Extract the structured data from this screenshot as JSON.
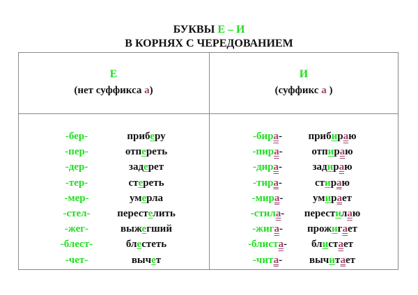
{
  "title": {
    "line1_prefix": "БУКВЫ ",
    "line1_letters": "Е – И",
    "line2": "В КОРНЯХ С ЧЕРЕДОВАНИЕМ"
  },
  "colors": {
    "green": "#22dd22",
    "purple": "#a0446e"
  },
  "columns": [
    {
      "letter": "Е",
      "note_open": "(нет суффикса ",
      "note_suffix": "а",
      "note_close": ")"
    },
    {
      "letter": "И",
      "note_open": "(суффикс ",
      "note_suffix": "а",
      "note_close": " )"
    }
  ],
  "left_rows": [
    {
      "root": [
        [
          "-бер-",
          "g"
        ]
      ],
      "word": [
        [
          "приб",
          ""
        ],
        [
          "е",
          "gu"
        ],
        [
          "ру",
          ""
        ]
      ]
    },
    {
      "root": [
        [
          "-пер-",
          "g"
        ]
      ],
      "word": [
        [
          "отп",
          ""
        ],
        [
          "е",
          "gu"
        ],
        [
          "реть",
          ""
        ]
      ]
    },
    {
      "root": [
        [
          "-дер-",
          "g"
        ]
      ],
      "word": [
        [
          "зад",
          ""
        ],
        [
          "е",
          "gu"
        ],
        [
          "рет",
          ""
        ]
      ]
    },
    {
      "root": [
        [
          "-тер-",
          "g"
        ]
      ],
      "word": [
        [
          "ст",
          ""
        ],
        [
          "е",
          "gu"
        ],
        [
          "реть",
          ""
        ]
      ]
    },
    {
      "root": [
        [
          "-мер-",
          "g"
        ]
      ],
      "word": [
        [
          "ум",
          ""
        ],
        [
          "е",
          "gu"
        ],
        [
          "рла",
          ""
        ]
      ]
    },
    {
      "root": [
        [
          "-стел-",
          "g"
        ]
      ],
      "word": [
        [
          "перест",
          ""
        ],
        [
          "е",
          "gu"
        ],
        [
          "лить",
          ""
        ]
      ]
    },
    {
      "root": [
        [
          "-жег-",
          "g"
        ]
      ],
      "word": [
        [
          "выж",
          ""
        ],
        [
          "е",
          "gu"
        ],
        [
          "гший",
          ""
        ]
      ]
    },
    {
      "root": [
        [
          "-блест-",
          "g"
        ]
      ],
      "word": [
        [
          "бл",
          ""
        ],
        [
          "е",
          "gu"
        ],
        [
          "стеть",
          ""
        ]
      ]
    },
    {
      "root": [
        [
          "-чет-",
          "g"
        ]
      ],
      "word": [
        [
          "выч",
          ""
        ],
        [
          "е",
          "gu"
        ],
        [
          "т",
          ""
        ]
      ]
    }
  ],
  "right_rows": [
    {
      "root": [
        [
          "-бир",
          "g"
        ],
        [
          "а",
          "pu"
        ],
        [
          "-",
          ""
        ]
      ],
      "word": [
        [
          "приб",
          ""
        ],
        [
          "и",
          "gu"
        ],
        [
          "р",
          ""
        ],
        [
          "а",
          "pu"
        ],
        [
          "ю",
          ""
        ]
      ]
    },
    {
      "root": [
        [
          "-пир",
          "g"
        ],
        [
          "а",
          "pu"
        ],
        [
          "-",
          ""
        ]
      ],
      "word": [
        [
          "отп",
          ""
        ],
        [
          "и",
          "gu"
        ],
        [
          "р",
          ""
        ],
        [
          "а",
          "pu"
        ],
        [
          "ю",
          ""
        ]
      ]
    },
    {
      "root": [
        [
          "-дир",
          "g"
        ],
        [
          "а",
          "pu"
        ],
        [
          "-",
          ""
        ]
      ],
      "word": [
        [
          "зад",
          ""
        ],
        [
          "и",
          "gu"
        ],
        [
          "р",
          ""
        ],
        [
          "а",
          "pu"
        ],
        [
          "ю",
          ""
        ]
      ]
    },
    {
      "root": [
        [
          "-тир",
          "g"
        ],
        [
          "а",
          "pu"
        ],
        [
          "-",
          ""
        ]
      ],
      "word": [
        [
          "ст",
          ""
        ],
        [
          "и",
          "gu"
        ],
        [
          "р",
          ""
        ],
        [
          "а",
          "pu"
        ],
        [
          "ю",
          ""
        ]
      ]
    },
    {
      "root": [
        [
          "-мир",
          "g"
        ],
        [
          "а",
          "pu"
        ],
        [
          "-",
          ""
        ]
      ],
      "word": [
        [
          "ум",
          ""
        ],
        [
          "и",
          "gu"
        ],
        [
          "р",
          ""
        ],
        [
          "а",
          "pu"
        ],
        [
          "ет",
          ""
        ]
      ]
    },
    {
      "root": [
        [
          "-стил",
          "g"
        ],
        [
          "а",
          "pu"
        ],
        [
          "-",
          ""
        ]
      ],
      "word": [
        [
          "перест",
          ""
        ],
        [
          "и",
          "gu"
        ],
        [
          "л",
          ""
        ],
        [
          "а",
          "pu"
        ],
        [
          "ю",
          ""
        ]
      ]
    },
    {
      "root": [
        [
          "-жиг",
          "g"
        ],
        [
          "а",
          "pu"
        ],
        [
          "-",
          ""
        ]
      ],
      "word": [
        [
          "прож",
          ""
        ],
        [
          "и",
          "gu"
        ],
        [
          "г",
          ""
        ],
        [
          "а",
          "pu"
        ],
        [
          "ет",
          ""
        ]
      ]
    },
    {
      "root": [
        [
          "-блист",
          "g"
        ],
        [
          "а",
          "pu"
        ],
        [
          "-",
          ""
        ]
      ],
      "word": [
        [
          "бл",
          ""
        ],
        [
          "и",
          "gu"
        ],
        [
          "ст",
          ""
        ],
        [
          "а",
          "pu"
        ],
        [
          "ет",
          ""
        ]
      ]
    },
    {
      "root": [
        [
          "-чит",
          "g"
        ],
        [
          "а",
          "pu"
        ],
        [
          "-",
          ""
        ]
      ],
      "word": [
        [
          "выч",
          ""
        ],
        [
          "и",
          "gu"
        ],
        [
          "т",
          ""
        ],
        [
          "а",
          "pu"
        ],
        [
          "ет",
          ""
        ]
      ]
    }
  ]
}
